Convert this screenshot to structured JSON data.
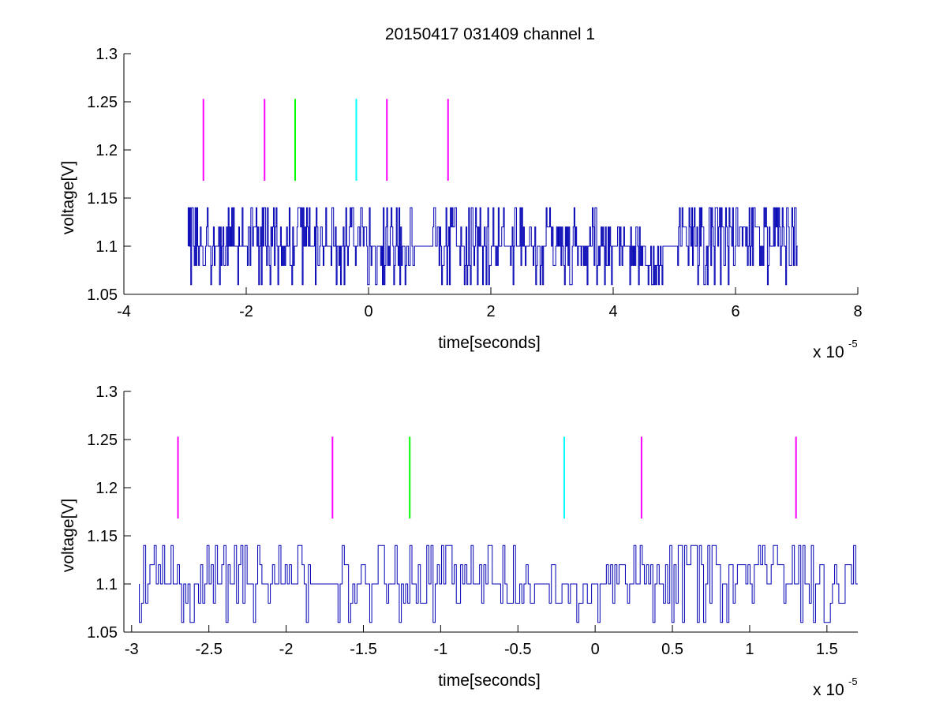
{
  "figure_title": "20150417 031409 channel 1",
  "colors": {
    "signal": "#0000b4",
    "magenta": "#ff00ff",
    "green": "#00ff00",
    "cyan": "#00ffff",
    "axis": "#000000"
  },
  "chart_data": [
    {
      "type": "line",
      "title": "20150417 031409 channel 1",
      "xlabel": "time[seconds]",
      "ylabel": "voltage[V]",
      "x_exponent_base": "x 10",
      "x_exponent": "-5",
      "xlim": [
        -4,
        8
      ],
      "ylim": [
        1.05,
        1.3
      ],
      "xticks": [
        -4,
        -2,
        0,
        2,
        4,
        6,
        8
      ],
      "xtick_labels": [
        "-4",
        "-2",
        "0",
        "2",
        "4",
        "6",
        "8"
      ],
      "yticks": [
        1.05,
        1.1,
        1.15,
        1.2,
        1.25,
        1.3
      ],
      "ytick_labels": [
        "1.05",
        "1.1",
        "1.15",
        "1.2",
        "1.25",
        "1.3"
      ],
      "grid": false,
      "series": [
        {
          "style": "step",
          "color": "#0000b4",
          "x_range": [
            -2.95,
            7.02
          ],
          "levels": [
            1.06,
            1.08,
            1.1,
            1.12,
            1.14
          ],
          "baseline": 1.1,
          "samples": 700,
          "quiet_intervals": [
            [
              0.75,
              1.05
            ],
            [
              4.8,
              5.05
            ]
          ],
          "low_interval": [
            4.4,
            5.0
          ],
          "dense_interval": [
            5.0,
            7.02
          ]
        }
      ],
      "markers": [
        {
          "x": -2.7,
          "y0": 1.168,
          "y1": 1.253,
          "color": "#ff00ff"
        },
        {
          "x": -1.7,
          "y0": 1.168,
          "y1": 1.253,
          "color": "#ff00ff"
        },
        {
          "x": -1.2,
          "y0": 1.168,
          "y1": 1.253,
          "color": "#00ff00"
        },
        {
          "x": -0.2,
          "y0": 1.168,
          "y1": 1.253,
          "color": "#00ffff"
        },
        {
          "x": 0.3,
          "y0": 1.168,
          "y1": 1.253,
          "color": "#ff00ff"
        },
        {
          "x": 1.3,
          "y0": 1.168,
          "y1": 1.253,
          "color": "#ff00ff"
        }
      ]
    },
    {
      "type": "line",
      "title": "",
      "xlabel": "time[seconds]",
      "ylabel": "voltage[V]",
      "x_exponent_base": "x 10",
      "x_exponent": "-5",
      "xlim": [
        -3.05,
        1.7
      ],
      "ylim": [
        1.05,
        1.3
      ],
      "xticks": [
        -3,
        -2.5,
        -2,
        -1.5,
        -1,
        -0.5,
        0,
        0.5,
        1,
        1.5
      ],
      "xtick_labels": [
        "-3",
        "-2.5",
        "-2",
        "-1.5",
        "-1",
        "-0.5",
        "0",
        "0.5",
        "1",
        "1.5"
      ],
      "yticks": [
        1.05,
        1.1,
        1.15,
        1.2,
        1.25,
        1.3
      ],
      "ytick_labels": [
        "1.05",
        "1.1",
        "1.15",
        "1.2",
        "1.25",
        "1.3"
      ],
      "grid": false,
      "series": [
        {
          "style": "step",
          "color": "#0000b4",
          "x_range": [
            -2.95,
            1.7
          ],
          "levels": [
            1.06,
            1.08,
            1.1,
            1.12,
            1.14
          ],
          "baseline": 1.1,
          "samples": 340,
          "quiet_intervals": [
            [
              -1.85,
              -1.7
            ],
            [
              -0.8,
              -0.75
            ],
            [
              -0.4,
              -0.3
            ]
          ],
          "low_interval": [
            -0.45,
            -0.2
          ],
          "dense_interval": [
            0.3,
            1.7
          ]
        }
      ],
      "markers": [
        {
          "x": -2.7,
          "y0": 1.168,
          "y1": 1.253,
          "color": "#ff00ff"
        },
        {
          "x": -1.7,
          "y0": 1.168,
          "y1": 1.253,
          "color": "#ff00ff"
        },
        {
          "x": -1.2,
          "y0": 1.168,
          "y1": 1.253,
          "color": "#00ff00"
        },
        {
          "x": -0.2,
          "y0": 1.168,
          "y1": 1.253,
          "color": "#00ffff"
        },
        {
          "x": 0.3,
          "y0": 1.168,
          "y1": 1.253,
          "color": "#ff00ff"
        },
        {
          "x": 1.3,
          "y0": 1.168,
          "y1": 1.253,
          "color": "#ff00ff"
        }
      ]
    }
  ]
}
